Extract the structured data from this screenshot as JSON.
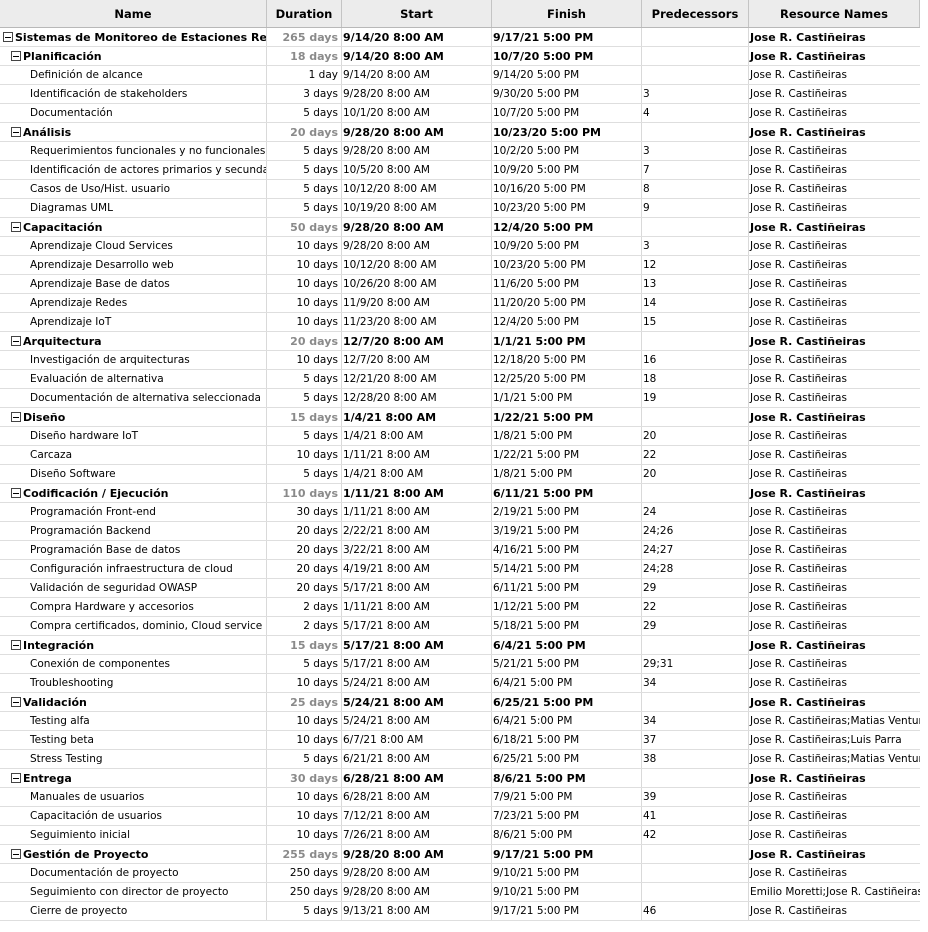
{
  "columns": [
    "Name",
    "Duration",
    "Start",
    "Finish",
    "Predecessors",
    "Resource Names"
  ],
  "rows": [
    {
      "level": 0,
      "summary": true,
      "name": "Sistemas de Monitoreo de Estaciones Remotas",
      "duration": "265 days",
      "start": "9/14/20 8:00 AM",
      "finish": "9/17/21 5:00 PM",
      "pred": "",
      "res": "Jose R. Castiñeiras"
    },
    {
      "level": 1,
      "summary": true,
      "name": "Planificación",
      "duration": "18 days",
      "start": "9/14/20 8:00 AM",
      "finish": "10/7/20 5:00 PM",
      "pred": "",
      "res": "Jose R. Castiñeiras"
    },
    {
      "level": 2,
      "summary": false,
      "name": "Definición de alcance",
      "duration": "1 day",
      "start": "9/14/20 8:00 AM",
      "finish": "9/14/20 5:00 PM",
      "pred": "",
      "res": "Jose R. Castiñeiras"
    },
    {
      "level": 2,
      "summary": false,
      "name": "Identificación de stakeholders",
      "duration": "3 days",
      "start": "9/28/20 8:00 AM",
      "finish": "9/30/20 5:00 PM",
      "pred": "3",
      "res": "Jose R. Castiñeiras"
    },
    {
      "level": 2,
      "summary": false,
      "name": "Documentación",
      "duration": "5 days",
      "start": "10/1/20 8:00 AM",
      "finish": "10/7/20 5:00 PM",
      "pred": "4",
      "res": "Jose R. Castiñeiras"
    },
    {
      "level": 1,
      "summary": true,
      "name": "Análisis",
      "duration": "20 days",
      "start": "9/28/20 8:00 AM",
      "finish": "10/23/20 5:00 PM",
      "pred": "",
      "res": "Jose R. Castiñeiras"
    },
    {
      "level": 2,
      "summary": false,
      "name": "Requerimientos funcionales y no funcionales",
      "duration": "5 days",
      "start": "9/28/20 8:00 AM",
      "finish": "10/2/20 5:00 PM",
      "pred": "3",
      "res": "Jose R. Castiñeiras"
    },
    {
      "level": 2,
      "summary": false,
      "name": "Identificación de actores primarios y secundarios",
      "duration": "5 days",
      "start": "10/5/20 8:00 AM",
      "finish": "10/9/20 5:00 PM",
      "pred": "7",
      "res": "Jose R. Castiñeiras"
    },
    {
      "level": 2,
      "summary": false,
      "name": "Casos de Uso/Hist. usuario",
      "duration": "5 days",
      "start": "10/12/20 8:00 AM",
      "finish": "10/16/20 5:00 PM",
      "pred": "8",
      "res": "Jose R. Castiñeiras"
    },
    {
      "level": 2,
      "summary": false,
      "name": "Diagramas UML",
      "duration": "5 days",
      "start": "10/19/20 8:00 AM",
      "finish": "10/23/20 5:00 PM",
      "pred": "9",
      "res": "Jose R. Castiñeiras"
    },
    {
      "level": 1,
      "summary": true,
      "name": "Capacitación",
      "duration": "50 days",
      "start": "9/28/20 8:00 AM",
      "finish": "12/4/20 5:00 PM",
      "pred": "",
      "res": "Jose R. Castiñeiras"
    },
    {
      "level": 2,
      "summary": false,
      "name": "Aprendizaje Cloud Services",
      "duration": "10 days",
      "start": "9/28/20 8:00 AM",
      "finish": "10/9/20 5:00 PM",
      "pred": "3",
      "res": "Jose R. Castiñeiras"
    },
    {
      "level": 2,
      "summary": false,
      "name": "Aprendizaje Desarrollo web",
      "duration": "10 days",
      "start": "10/12/20 8:00 AM",
      "finish": "10/23/20 5:00 PM",
      "pred": "12",
      "res": "Jose R. Castiñeiras"
    },
    {
      "level": 2,
      "summary": false,
      "name": "Aprendizaje Base de datos",
      "duration": "10 days",
      "start": "10/26/20 8:00 AM",
      "finish": "11/6/20 5:00 PM",
      "pred": "13",
      "res": "Jose R. Castiñeiras"
    },
    {
      "level": 2,
      "summary": false,
      "name": "Aprendizaje Redes",
      "duration": "10 days",
      "start": "11/9/20 8:00 AM",
      "finish": "11/20/20 5:00 PM",
      "pred": "14",
      "res": "Jose R. Castiñeiras"
    },
    {
      "level": 2,
      "summary": false,
      "name": "Aprendizaje IoT",
      "duration": "10 days",
      "start": "11/23/20 8:00 AM",
      "finish": "12/4/20 5:00 PM",
      "pred": "15",
      "res": "Jose R. Castiñeiras"
    },
    {
      "level": 1,
      "summary": true,
      "name": "Arquitectura",
      "duration": "20 days",
      "start": "12/7/20 8:00 AM",
      "finish": "1/1/21 5:00 PM",
      "pred": "",
      "res": "Jose R. Castiñeiras"
    },
    {
      "level": 2,
      "summary": false,
      "name": "Investigación de arquitecturas",
      "duration": "10 days",
      "start": "12/7/20 8:00 AM",
      "finish": "12/18/20 5:00 PM",
      "pred": "16",
      "res": "Jose R. Castiñeiras"
    },
    {
      "level": 2,
      "summary": false,
      "name": "Evaluación de alternativa",
      "duration": "5 days",
      "start": "12/21/20 8:00 AM",
      "finish": "12/25/20 5:00 PM",
      "pred": "18",
      "res": "Jose R. Castiñeiras"
    },
    {
      "level": 2,
      "summary": false,
      "name": "Documentación de alternativa seleccionada",
      "duration": "5 days",
      "start": "12/28/20 8:00 AM",
      "finish": "1/1/21 5:00 PM",
      "pred": "19",
      "res": "Jose R. Castiñeiras"
    },
    {
      "level": 1,
      "summary": true,
      "name": "Diseño",
      "duration": "15 days",
      "start": "1/4/21 8:00 AM",
      "finish": "1/22/21 5:00 PM",
      "pred": "",
      "res": "Jose R. Castiñeiras"
    },
    {
      "level": 2,
      "summary": false,
      "name": "Diseño hardware IoT",
      "duration": "5 days",
      "start": "1/4/21 8:00 AM",
      "finish": "1/8/21 5:00 PM",
      "pred": "20",
      "res": "Jose R. Castiñeiras"
    },
    {
      "level": 2,
      "summary": false,
      "name": "Carcaza",
      "duration": "10 days",
      "start": "1/11/21 8:00 AM",
      "finish": "1/22/21 5:00 PM",
      "pred": "22",
      "res": "Jose R. Castiñeiras"
    },
    {
      "level": 2,
      "summary": false,
      "name": "Diseño Software",
      "duration": "5 days",
      "start": "1/4/21 8:00 AM",
      "finish": "1/8/21 5:00 PM",
      "pred": "20",
      "res": "Jose R. Castiñeiras"
    },
    {
      "level": 1,
      "summary": true,
      "name": "Codificación / Ejecución",
      "duration": "110 days",
      "start": "1/11/21 8:00 AM",
      "finish": "6/11/21 5:00 PM",
      "pred": "",
      "res": "Jose R. Castiñeiras"
    },
    {
      "level": 2,
      "summary": false,
      "name": "Programación Front-end",
      "duration": "30 days",
      "start": "1/11/21 8:00 AM",
      "finish": "2/19/21 5:00 PM",
      "pred": "24",
      "res": "Jose R. Castiñeiras"
    },
    {
      "level": 2,
      "summary": false,
      "name": "Programación Backend",
      "duration": "20 days",
      "start": "2/22/21 8:00 AM",
      "finish": "3/19/21 5:00 PM",
      "pred": "24;26",
      "res": "Jose R. Castiñeiras"
    },
    {
      "level": 2,
      "summary": false,
      "name": "Programación Base de datos",
      "duration": "20 days",
      "start": "3/22/21 8:00 AM",
      "finish": "4/16/21 5:00 PM",
      "pred": "24;27",
      "res": "Jose R. Castiñeiras"
    },
    {
      "level": 2,
      "summary": false,
      "name": "Configuración infraestructura de cloud",
      "duration": "20 days",
      "start": "4/19/21 8:00 AM",
      "finish": "5/14/21 5:00 PM",
      "pred": "24;28",
      "res": "Jose R. Castiñeiras"
    },
    {
      "level": 2,
      "summary": false,
      "name": "Validación de seguridad OWASP",
      "duration": "20 days",
      "start": "5/17/21 8:00 AM",
      "finish": "6/11/21 5:00 PM",
      "pred": "29",
      "res": "Jose R. Castiñeiras"
    },
    {
      "level": 2,
      "summary": false,
      "name": "Compra Hardware y accesorios",
      "duration": "2 days",
      "start": "1/11/21 8:00 AM",
      "finish": "1/12/21 5:00 PM",
      "pred": "22",
      "res": "Jose R. Castiñeiras"
    },
    {
      "level": 2,
      "summary": false,
      "name": "Compra certificados, dominio, Cloud service",
      "duration": "2 days",
      "start": "5/17/21 8:00 AM",
      "finish": "5/18/21 5:00 PM",
      "pred": "29",
      "res": "Jose R. Castiñeiras"
    },
    {
      "level": 1,
      "summary": true,
      "name": "Integración",
      "duration": "15 days",
      "start": "5/17/21 8:00 AM",
      "finish": "6/4/21 5:00 PM",
      "pred": "",
      "res": "Jose R. Castiñeiras"
    },
    {
      "level": 2,
      "summary": false,
      "name": "Conexión de componentes",
      "duration": "5 days",
      "start": "5/17/21 8:00 AM",
      "finish": "5/21/21 5:00 PM",
      "pred": "29;31",
      "res": "Jose R. Castiñeiras"
    },
    {
      "level": 2,
      "summary": false,
      "name": "Troubleshooting",
      "duration": "10 days",
      "start": "5/24/21 8:00 AM",
      "finish": "6/4/21 5:00 PM",
      "pred": "34",
      "res": "Jose R. Castiñeiras"
    },
    {
      "level": 1,
      "summary": true,
      "name": "Validación",
      "duration": "25 days",
      "start": "5/24/21 8:00 AM",
      "finish": "6/25/21 5:00 PM",
      "pred": "",
      "res": "Jose R. Castiñeiras"
    },
    {
      "level": 2,
      "summary": false,
      "name": "Testing alfa",
      "duration": "10 days",
      "start": "5/24/21 8:00 AM",
      "finish": "6/4/21 5:00 PM",
      "pred": "34",
      "res": "Jose R. Castiñeiras;Matias Ventura"
    },
    {
      "level": 2,
      "summary": false,
      "name": "Testing beta",
      "duration": "10 days",
      "start": "6/7/21 8:00 AM",
      "finish": "6/18/21 5:00 PM",
      "pred": "37",
      "res": "Jose R. Castiñeiras;Luis Parra"
    },
    {
      "level": 2,
      "summary": false,
      "name": "Stress Testing",
      "duration": "5 days",
      "start": "6/21/21 8:00 AM",
      "finish": "6/25/21 5:00 PM",
      "pred": "38",
      "res": "Jose R. Castiñeiras;Matias Ventura"
    },
    {
      "level": 1,
      "summary": true,
      "name": "Entrega",
      "duration": "30 days",
      "start": "6/28/21 8:00 AM",
      "finish": "8/6/21 5:00 PM",
      "pred": "",
      "res": "Jose R. Castiñeiras"
    },
    {
      "level": 2,
      "summary": false,
      "name": "Manuales de usuarios",
      "duration": "10 days",
      "start": "6/28/21 8:00 AM",
      "finish": "7/9/21 5:00 PM",
      "pred": "39",
      "res": "Jose R. Castiñeiras"
    },
    {
      "level": 2,
      "summary": false,
      "name": "Capacitación de usuarios",
      "duration": "10 days",
      "start": "7/12/21 8:00 AM",
      "finish": "7/23/21 5:00 PM",
      "pred": "41",
      "res": "Jose R. Castiñeiras"
    },
    {
      "level": 2,
      "summary": false,
      "name": "Seguimiento inicial",
      "duration": "10 days",
      "start": "7/26/21 8:00 AM",
      "finish": "8/6/21 5:00 PM",
      "pred": "42",
      "res": "Jose R. Castiñeiras"
    },
    {
      "level": 1,
      "summary": true,
      "name": "Gestión de Proyecto",
      "duration": "255 days",
      "start": "9/28/20 8:00 AM",
      "finish": "9/17/21 5:00 PM",
      "pred": "",
      "res": "Jose R. Castiñeiras"
    },
    {
      "level": 2,
      "summary": false,
      "name": "Documentación de proyecto",
      "duration": "250 days",
      "start": "9/28/20 8:00 AM",
      "finish": "9/10/21 5:00 PM",
      "pred": "",
      "res": "Jose R. Castiñeiras"
    },
    {
      "level": 2,
      "summary": false,
      "name": "Seguimiento con director de proyecto",
      "duration": "250 days",
      "start": "9/28/20 8:00 AM",
      "finish": "9/10/21 5:00 PM",
      "pred": "",
      "res": "Emilio Moretti;Jose R. Castiñeiras"
    },
    {
      "level": 2,
      "summary": false,
      "name": "Cierre de proyecto",
      "duration": "5 days",
      "start": "9/13/21 8:00 AM",
      "finish": "9/17/21 5:00 PM",
      "pred": "46",
      "res": "Jose R. Castiñeiras"
    }
  ]
}
